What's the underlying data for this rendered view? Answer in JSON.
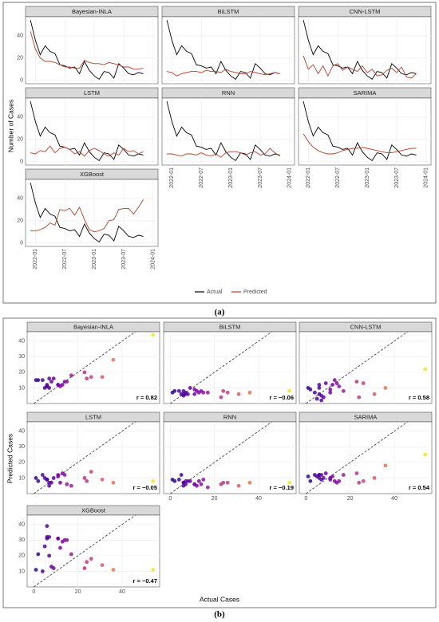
{
  "chart_data": [
    {
      "type": "line",
      "ylabel": "Number of Cases",
      "x": [
        "2021-12",
        "2022-01",
        "2022-02",
        "2022-03",
        "2022-04",
        "2022-05",
        "2022-06",
        "2022-07",
        "2022-08",
        "2022-09",
        "2022-10",
        "2022-11",
        "2022-12",
        "2023-01",
        "2023-02",
        "2023-03",
        "2023-04",
        "2023-05",
        "2023-06",
        "2023-07",
        "2023-08",
        "2023-09",
        "2023-10",
        "2023-11"
      ],
      "xlim": [
        "2021-11",
        "2024-02"
      ],
      "xticks": [
        "2022-01",
        "2022-07",
        "2023-01",
        "2023-07",
        "2024-01"
      ],
      "ylim": [
        -3,
        57
      ],
      "yticks": [
        0,
        20,
        40
      ],
      "grid": true,
      "legend": "bottom",
      "series": [
        {
          "name": "Actual",
          "color": "#000000",
          "values": [
            54,
            36,
            23,
            31,
            26,
            24,
            14,
            13,
            11,
            12,
            6,
            17,
            9,
            4,
            1,
            8,
            7,
            2,
            15,
            11,
            6,
            5,
            7,
            6
          ]
        },
        {
          "name": "Predicted",
          "color": "#b5412a"
        }
      ],
      "facets": [
        {
          "name": "Bayesian-INLA",
          "values": [
            44,
            28,
            20,
            17,
            17,
            16,
            14,
            12,
            12,
            11,
            11,
            18,
            16,
            15,
            15,
            14,
            16,
            15,
            14,
            12,
            12,
            10,
            10,
            11
          ]
        },
        {
          "name": "BiLSTM",
          "values": [
            8,
            7,
            4,
            6,
            7,
            8,
            8,
            7,
            9,
            8,
            8,
            7,
            10,
            8,
            7,
            6,
            6,
            8,
            7,
            6,
            5,
            6,
            7,
            6
          ]
        },
        {
          "name": "CNN-LSTM",
          "values": [
            22,
            10,
            14,
            6,
            13,
            4,
            13,
            15,
            9,
            12,
            10,
            8,
            13,
            7,
            10,
            4,
            5,
            9,
            11,
            7,
            12,
            3,
            2,
            6
          ]
        },
        {
          "name": "LSTM",
          "values": [
            8,
            7,
            10,
            9,
            14,
            8,
            12,
            13,
            11,
            7,
            9,
            5,
            10,
            12,
            10,
            7,
            5,
            8,
            6,
            12,
            9,
            10,
            7,
            9
          ]
        },
        {
          "name": "RNN",
          "values": [
            7,
            7,
            6,
            5,
            7,
            7,
            6,
            8,
            6,
            5,
            7,
            4,
            8,
            9,
            9,
            8,
            6,
            8,
            9,
            6,
            7,
            12,
            8,
            5
          ]
        },
        {
          "name": "SARIMA",
          "values": [
            25,
            18,
            13,
            10,
            8,
            7,
            7,
            8,
            10,
            11,
            12,
            12,
            13,
            12,
            11,
            10,
            9,
            8,
            8,
            9,
            10,
            11,
            12,
            12
          ]
        },
        {
          "name": "XGBoost",
          "values": [
            11,
            11,
            12,
            14,
            18,
            16,
            30,
            29,
            31,
            25,
            32,
            21,
            12,
            10,
            11,
            13,
            20,
            21,
            30,
            31,
            31,
            26,
            32,
            39
          ]
        }
      ]
    },
    {
      "type": "scatter",
      "xlabel": "Actual Cases",
      "ylabel": "Predicted Cases",
      "xlim": [
        -3,
        57
      ],
      "xticks": [
        0,
        20,
        40
      ],
      "ylim": [
        0,
        46
      ],
      "yticks": [
        10,
        20,
        30,
        40
      ],
      "grid": true,
      "colormap": "plasma",
      "identity_line": true,
      "facets": [
        {
          "name": "Bayesian-INLA",
          "r": 0.82,
          "r_label": "r = 0.82"
        },
        {
          "name": "BiLSTM",
          "r": -0.06,
          "r_label": "r = −0.06"
        },
        {
          "name": "CNN-LSTM",
          "r": 0.58,
          "r_label": "r = 0.58"
        },
        {
          "name": "LSTM",
          "r": -0.05,
          "r_label": "r = −0.05"
        },
        {
          "name": "RNN",
          "r": -0.19,
          "r_label": "r = −0.19"
        },
        {
          "name": "SARIMA",
          "r": 0.54,
          "r_label": "r = 0.54"
        },
        {
          "name": "XGBoost",
          "r": -0.47,
          "r_label": "r = −0.47"
        }
      ]
    }
  ],
  "captions": [
    "(a)",
    "(b)"
  ]
}
